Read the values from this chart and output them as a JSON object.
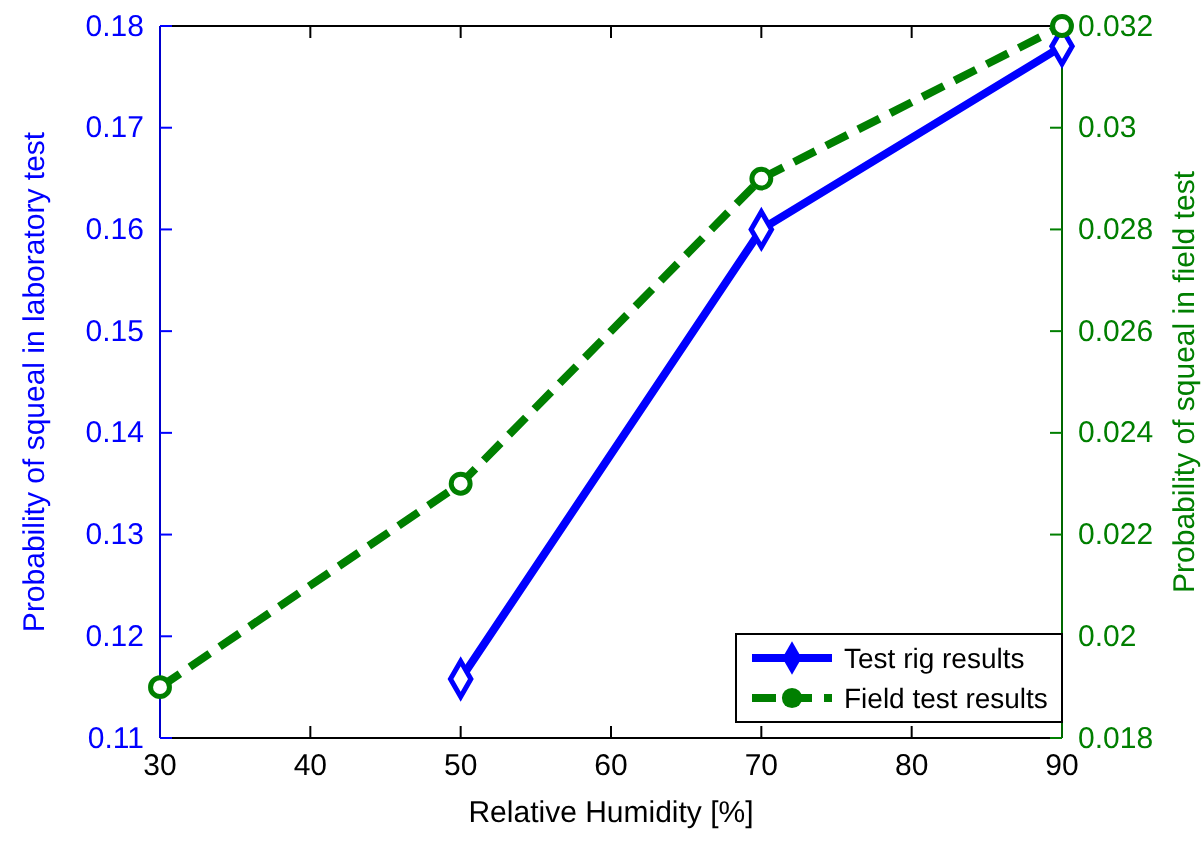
{
  "chart_data": {
    "type": "line",
    "xlabel": "Relative Humidity [%]",
    "ylabel": "Probability of squeal in laboratory test",
    "y2label": "Probability of squeal in field test",
    "x": [
      30,
      50,
      70,
      90
    ],
    "xlim": [
      30,
      90
    ],
    "xticks": [
      30,
      40,
      50,
      60,
      70,
      80,
      90
    ],
    "ylim": [
      0.11,
      0.18
    ],
    "yticks": [
      0.11,
      0.12,
      0.13,
      0.14,
      0.15,
      0.16,
      0.17,
      0.18
    ],
    "y2lim": [
      0.018,
      0.032
    ],
    "y2ticks": [
      0.018,
      0.02,
      0.022,
      0.024,
      0.026,
      0.028,
      0.03,
      0.032
    ],
    "legend": "bottom right",
    "grid": false,
    "series": [
      {
        "name": "Test rig results",
        "color": "#0000ff",
        "values": [
          null,
          0.1158,
          0.16,
          0.178
        ],
        "marker": "diamond",
        "line_style": "solid"
      },
      {
        "name": "Field test results",
        "color": "#007f00",
        "axis": "y2",
        "values": [
          0.019,
          0.023,
          0.029,
          0.032
        ],
        "marker": "circle",
        "line_style": "dashed"
      }
    ]
  }
}
